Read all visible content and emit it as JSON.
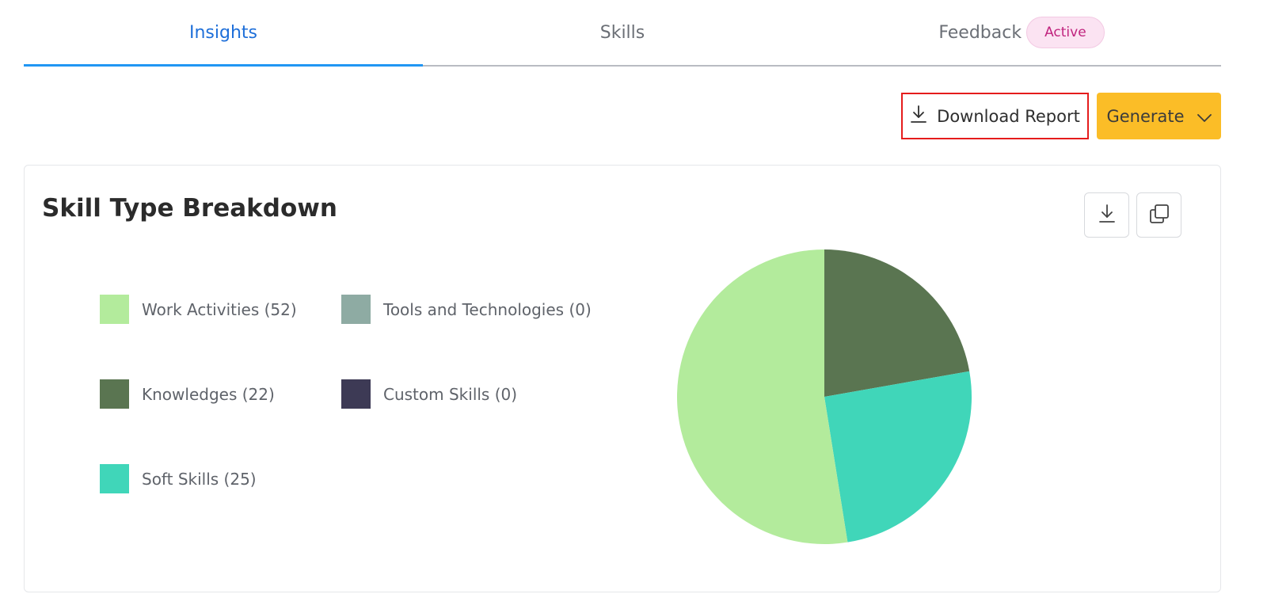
{
  "tabs": [
    {
      "label": "Insights",
      "active": true
    },
    {
      "label": "Skills",
      "active": false
    },
    {
      "label": "Feedback",
      "active": false,
      "badge": "Active"
    }
  ],
  "toolbar": {
    "download_label": "Download Report",
    "generate_label": "Generate"
  },
  "card": {
    "title": "Skill Type Breakdown"
  },
  "legend": [
    {
      "label": "Work Activities (52)",
      "color": "#b3eb9c"
    },
    {
      "label": "Tools and Technologies (0)",
      "color": "#8eaba3"
    },
    {
      "label": "Knowledges (22)",
      "color": "#5a7551"
    },
    {
      "label": "Custom Skills (0)",
      "color": "#3d3a55"
    },
    {
      "label": "Soft Skills (25)",
      "color": "#40d6b9"
    }
  ],
  "chart_data": {
    "type": "pie",
    "title": "Skill Type Breakdown",
    "categories": [
      "Work Activities",
      "Tools and Technologies",
      "Knowledges",
      "Custom Skills",
      "Soft Skills"
    ],
    "values": [
      52,
      0,
      22,
      0,
      25
    ],
    "colors": [
      "#b3eb9c",
      "#8eaba3",
      "#5a7551",
      "#3d3a55",
      "#40d6b9"
    ],
    "slice_order_clockwise_from_top": [
      "Knowledges",
      "Soft Skills",
      "Work Activities"
    ],
    "legend": "left"
  },
  "colors": {
    "accent": "#1e6fd9",
    "tab_indicator": "#2196f3",
    "generate_bg": "#fbbd27",
    "highlight_border": "#e51c1c"
  }
}
